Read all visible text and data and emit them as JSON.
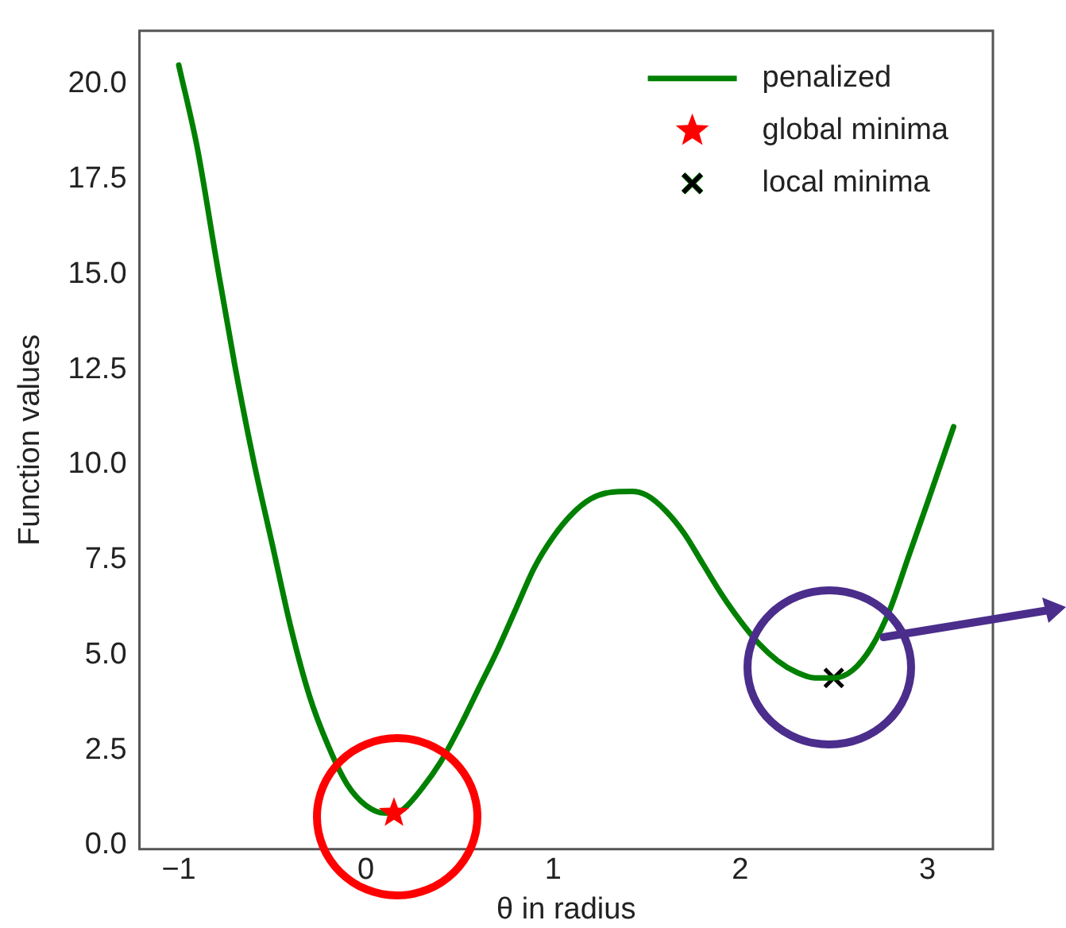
{
  "chart_data": {
    "type": "line",
    "xlabel": "θ in radius",
    "ylabel": "Function values",
    "xlim": [
      -1.21,
      3.35
    ],
    "ylim": [
      -0.1,
      21.4
    ],
    "xticks": [
      -1,
      0,
      1,
      2,
      3
    ],
    "yticks": [
      {
        "value": 0,
        "label": "0.0"
      },
      {
        "value": 2.5,
        "label": "2.5"
      },
      {
        "value": 5,
        "label": "5.0"
      },
      {
        "value": 7.5,
        "label": "7.5"
      },
      {
        "value": 10,
        "label": "10.0"
      },
      {
        "value": 12.5,
        "label": "12.5"
      },
      {
        "value": 15,
        "label": "15.0"
      },
      {
        "value": 17.5,
        "label": "17.5"
      },
      {
        "value": 20,
        "label": "20.0"
      }
    ],
    "grid": false,
    "legend": "top right",
    "series": [
      {
        "name": "penalized",
        "color": "#008000",
        "marker": "none",
        "x": [
          -1,
          -0.9,
          -0.8,
          -0.7,
          -0.6,
          -0.5,
          -0.4,
          -0.3,
          -0.2,
          -0.1,
          0,
          0.1,
          0.15,
          0.2,
          0.3,
          0.4,
          0.5,
          0.6,
          0.7,
          0.8,
          0.9,
          1.0,
          1.1,
          1.2,
          1.3,
          1.42,
          1.5,
          1.6,
          1.7,
          1.8,
          1.9,
          2.0,
          2.1,
          2.2,
          2.3,
          2.4,
          2.5,
          2.6,
          2.7,
          2.8,
          2.9,
          3.0,
          3.14
        ],
        "values": [
          20.5,
          18.3,
          15.4,
          12.6,
          10.1,
          7.9,
          5.7,
          3.9,
          2.6,
          1.6,
          1.05,
          0.85,
          0.85,
          0.95,
          1.5,
          2.2,
          3.1,
          4.1,
          5.1,
          6.2,
          7.3,
          8.1,
          8.7,
          9.1,
          9.27,
          9.3,
          9.2,
          8.8,
          8.2,
          7.4,
          6.6,
          5.9,
          5.3,
          4.85,
          4.55,
          4.4,
          4.4,
          4.6,
          5.2,
          6.2,
          7.6,
          9.0,
          11.0
        ]
      },
      {
        "name": "global minima",
        "type": "scatter",
        "color": "#ff0000",
        "marker": "star",
        "x": [
          0.15
        ],
        "values": [
          0.85
        ]
      },
      {
        "name": "local minima",
        "type": "scatter",
        "color": "#000000",
        "marker": "cross",
        "x": [
          2.5
        ],
        "values": [
          4.4
        ]
      }
    ]
  }
}
